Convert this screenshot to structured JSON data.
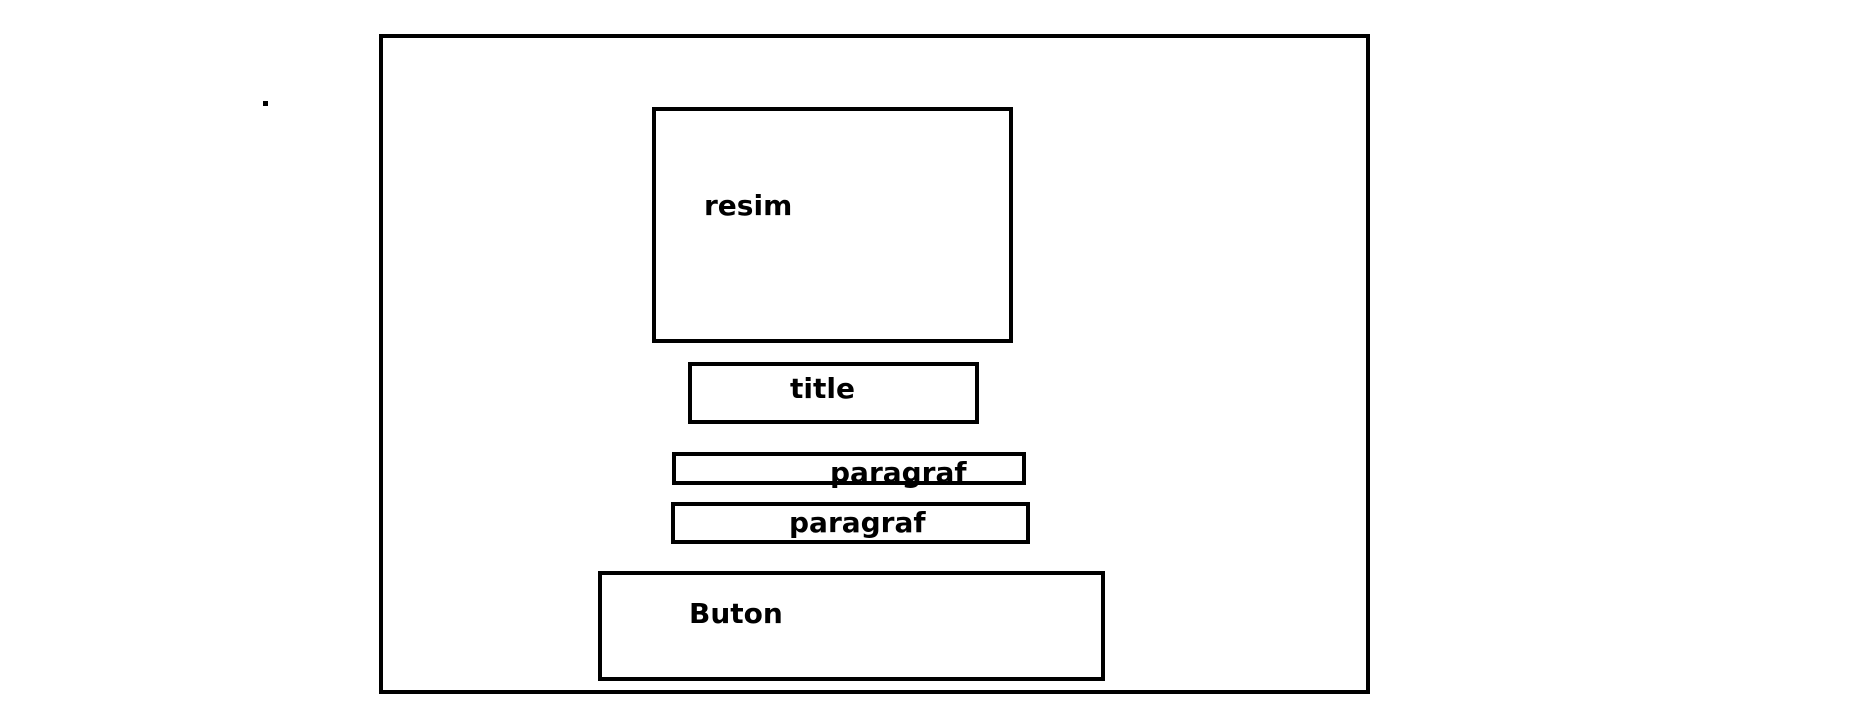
{
  "wireframe": {
    "image_label": "resim",
    "title_label": "title",
    "paragraph_1_label": "paragraf",
    "paragraph_2_label": "paragraf",
    "button_label": "Buton"
  },
  "colors": {
    "stroke": "#000000",
    "background": "#ffffff"
  }
}
